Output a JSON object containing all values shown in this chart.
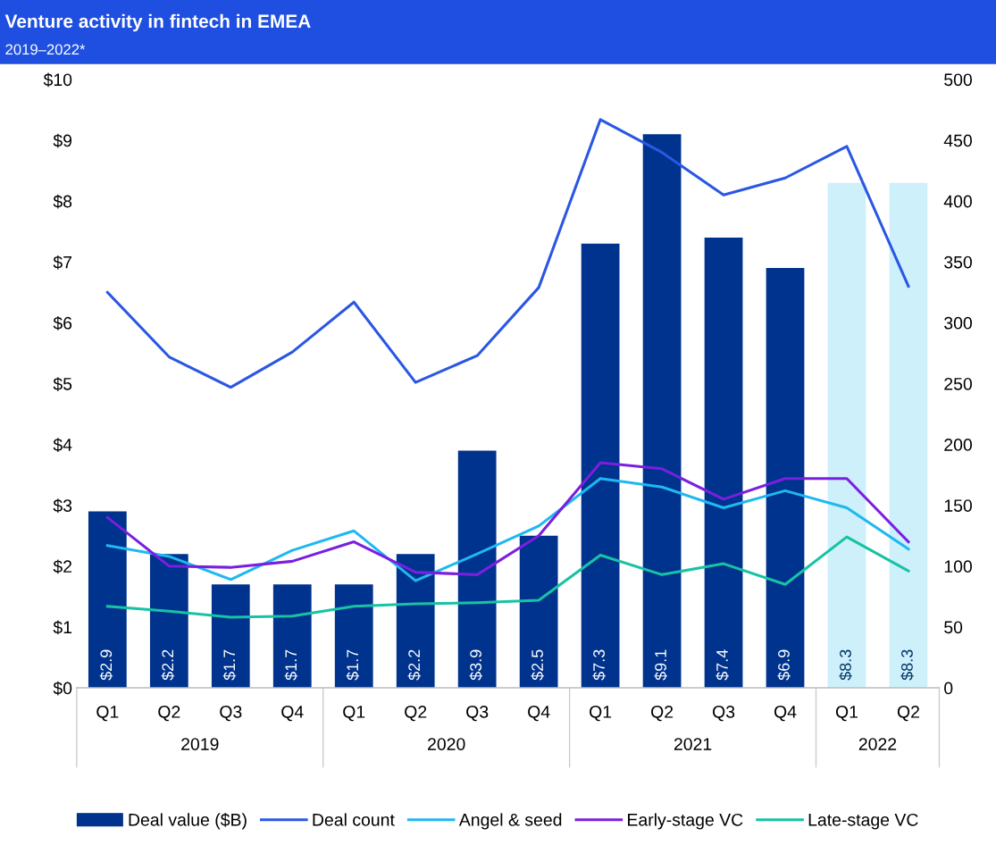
{
  "chart_data": {
    "type": "bar",
    "title": "Venture activity in fintech in EMEA",
    "subtitle": "2019–2022*",
    "categories": [
      "Q1",
      "Q2",
      "Q3",
      "Q4",
      "Q1",
      "Q2",
      "Q3",
      "Q4",
      "Q1",
      "Q2",
      "Q3",
      "Q4",
      "Q1",
      "Q2"
    ],
    "annotations": [
      "2019",
      "2020",
      "2021",
      "2022"
    ],
    "series": [
      {
        "name": "Deal value ($B)",
        "colors": [
          "#00338d",
          "#00338d",
          "#00338d",
          "#00338d",
          "#00338d",
          "#00338d",
          "#00338d",
          "#00338d",
          "#00338d",
          "#00338d",
          "#00338d",
          "#00338d",
          "#cdf0fb",
          "#cdf0fb"
        ],
        "values": [
          2.9,
          2.2,
          1.7,
          1.7,
          1.7,
          2.2,
          3.9,
          2.5,
          7.3,
          9.1,
          7.4,
          6.9,
          8.3,
          8.3
        ],
        "value_labels": [
          "$2.9",
          "$2.2",
          "$1.7",
          "$1.7",
          "$1.7",
          "$2.2",
          "$3.9",
          "$2.5",
          "$7.3",
          "$9.1",
          "$7.4",
          "$6.9",
          "$8.3",
          "$8.3"
        ]
      },
      {
        "name": "Deal count",
        "type": "line",
        "axis": "y2",
        "color": "#2a57e3",
        "values": [
          325,
          272,
          247,
          276,
          317,
          251,
          273,
          329,
          467,
          440,
          405,
          419,
          445,
          330
        ]
      },
      {
        "name": "Angel & seed",
        "type": "line",
        "axis": "y2",
        "color": "#1fb8f0",
        "values": [
          117,
          108,
          89,
          113,
          129,
          88,
          110,
          133,
          172,
          165,
          148,
          162,
          148,
          114
        ]
      },
      {
        "name": "Early-stage VC",
        "type": "line",
        "axis": "y2",
        "color": "#7a1fe0",
        "values": [
          140,
          100,
          99,
          104,
          120,
          95,
          93,
          125,
          185,
          180,
          155,
          172,
          172,
          120
        ]
      },
      {
        "name": "Late-stage VC",
        "type": "line",
        "axis": "y2",
        "color": "#18c2a4",
        "values": [
          67,
          63,
          58,
          59,
          67,
          69,
          70,
          72,
          109,
          93,
          102,
          85,
          124,
          96
        ]
      }
    ],
    "ylim": [
      0,
      10
    ],
    "yticks": [
      {
        "value": 0,
        "label": "$0"
      },
      {
        "value": 1,
        "label": "$1"
      },
      {
        "value": 2,
        "label": "$2"
      },
      {
        "value": 3,
        "label": "$3"
      },
      {
        "value": 4,
        "label": "$4"
      },
      {
        "value": 5,
        "label": "$5"
      },
      {
        "value": 6,
        "label": "$6"
      },
      {
        "value": 7,
        "label": "$7"
      },
      {
        "value": 8,
        "label": "$8"
      },
      {
        "value": 9,
        "label": "$9"
      },
      {
        "value": 10,
        "label": "$10"
      }
    ],
    "y2lim": [
      0,
      500
    ],
    "y2ticks": [
      0,
      50,
      100,
      150,
      200,
      250,
      300,
      350,
      400,
      450,
      500
    ],
    "grid": false,
    "legend": "bottom",
    "marker": "none",
    "line_style": "solid"
  }
}
